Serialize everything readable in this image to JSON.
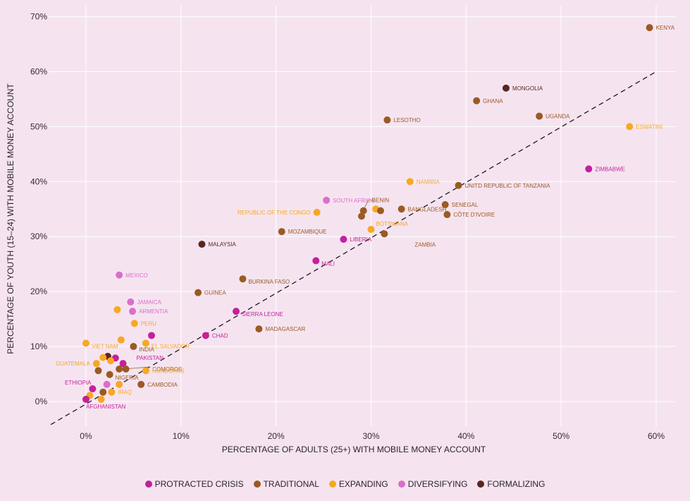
{
  "colors": {
    "background": "#f5e4f0",
    "grid": "#ffffff",
    "protracted_crisis": "#c4209a",
    "traditional": "#9b5a24",
    "expanding": "#f7a823",
    "diversifying": "#db6ecb",
    "formalizing": "#5a2620"
  },
  "chart_data": {
    "type": "scatter",
    "title": "",
    "xlabel": "PERCENTAGE OF ADULTS (25+) WITH MOBILE MONEY ACCOUNT",
    "ylabel": "PERCENTAGE OF YOUTH (15–24) WITH MOBILE MONEY ACCOUNT",
    "xlim": [
      -4,
      62
    ],
    "ylim": [
      -4.5,
      72
    ],
    "x_ticks": [
      0,
      10,
      20,
      30,
      40,
      50,
      60
    ],
    "x_tick_labels": [
      "0%",
      "10%",
      "20%",
      "30%",
      "40%",
      "50%",
      "60%"
    ],
    "y_ticks": [
      0,
      10,
      20,
      30,
      40,
      50,
      60,
      70
    ],
    "y_tick_labels": [
      "0%",
      "10%",
      "20%",
      "30%",
      "40%",
      "50%",
      "60%",
      "70%"
    ],
    "grid": true,
    "reference_line": {
      "style": "dashed",
      "color": "#1a1a1a",
      "points": [
        [
          -3.7,
          -4.2
        ],
        [
          60,
          60
        ]
      ]
    },
    "legend_position": "bottom",
    "series": [
      {
        "key": "protracted_crisis",
        "name": "PROTRACTED CRISIS"
      },
      {
        "key": "traditional",
        "name": "TRADITIONAL"
      },
      {
        "key": "expanding",
        "name": "EXPANDING"
      },
      {
        "key": "diversifying",
        "name": "DIVERSIFYING"
      },
      {
        "key": "formalizing",
        "name": "FORMALIZING"
      }
    ],
    "points": [
      {
        "label": "KENYA",
        "series": "traditional",
        "x": 59.3,
        "y": 68.0,
        "label_pos": "right"
      },
      {
        "label": "MONGOLIA",
        "series": "formalizing",
        "x": 44.2,
        "y": 57.0,
        "label_pos": "right"
      },
      {
        "label": "GHANA",
        "series": "traditional",
        "x": 41.1,
        "y": 54.7,
        "label_pos": "right"
      },
      {
        "label": "UGANDA",
        "series": "traditional",
        "x": 47.7,
        "y": 51.9,
        "label_pos": "right"
      },
      {
        "label": "LESOTHO",
        "series": "traditional",
        "x": 31.7,
        "y": 51.2,
        "label_pos": "right"
      },
      {
        "label": "ESWATINI",
        "series": "expanding",
        "x": 57.2,
        "y": 50.0,
        "label_pos": "right"
      },
      {
        "label": "ZIMBABWE",
        "series": "protracted_crisis",
        "x": 52.9,
        "y": 42.3,
        "label_pos": "right"
      },
      {
        "label": "NAMIBIA",
        "series": "expanding",
        "x": 34.1,
        "y": 40.0,
        "label_pos": "right"
      },
      {
        "label": "UNITD REPUBLIC OF TANZANIA",
        "series": "traditional",
        "x": 39.2,
        "y": 39.3,
        "label_pos": "right"
      },
      {
        "label": "SOUTH AFRICA",
        "series": "diversifying",
        "x": 25.3,
        "y": 36.6,
        "label_pos": "right"
      },
      {
        "label": "BENIN",
        "series": "traditional",
        "x": 29.2,
        "y": 34.7,
        "label_pos": "bracket-right"
      },
      {
        "label": "",
        "series": "traditional",
        "x": 29.0,
        "y": 33.7,
        "label_pos": "none"
      },
      {
        "label": "",
        "series": "expanding",
        "x": 30.5,
        "y": 35.0,
        "label_pos": "none"
      },
      {
        "label": "",
        "series": "traditional",
        "x": 31.0,
        "y": 34.7,
        "label_pos": "none"
      },
      {
        "label": "REPUBLIC OF THE CONGO",
        "series": "expanding",
        "x": 24.3,
        "y": 34.4,
        "label_pos": "left"
      },
      {
        "label": "BANGLADESH",
        "series": "traditional",
        "x": 33.2,
        "y": 35.0,
        "label_pos": "right"
      },
      {
        "label": "SENEGAL",
        "series": "traditional",
        "x": 37.8,
        "y": 35.8,
        "label_pos": "right"
      },
      {
        "label": "CÔTE D'IVOIRE",
        "series": "traditional",
        "x": 38.0,
        "y": 34.0,
        "label_pos": "right"
      },
      {
        "label": "BOTSWANA",
        "series": "expanding",
        "x": 30.0,
        "y": 31.3,
        "label_pos": "right-up"
      },
      {
        "label": "MOZAMBIQUE",
        "series": "traditional",
        "x": 20.6,
        "y": 30.9,
        "label_pos": "right"
      },
      {
        "label": "ZAMBIA",
        "series": "traditional",
        "x": 31.4,
        "y": 30.5,
        "label_pos": "below-right"
      },
      {
        "label": "LIBERIA",
        "series": "protracted_crisis",
        "x": 27.1,
        "y": 29.5,
        "label_pos": "right"
      },
      {
        "label": "MALAYSIA",
        "series": "formalizing",
        "x": 12.2,
        "y": 28.6,
        "label_pos": "right"
      },
      {
        "label": "MALI",
        "series": "protracted_crisis",
        "x": 24.2,
        "y": 25.6,
        "label_pos": "right-down"
      },
      {
        "label": "MEXICO",
        "series": "diversifying",
        "x": 3.5,
        "y": 23.0,
        "label_pos": "right"
      },
      {
        "label": "BURKINA FASO",
        "series": "traditional",
        "x": 16.5,
        "y": 22.3,
        "label_pos": "right-down"
      },
      {
        "label": "GUINEA",
        "series": "traditional",
        "x": 11.8,
        "y": 19.8,
        "label_pos": "right"
      },
      {
        "label": "JAMAICA",
        "series": "diversifying",
        "x": 4.7,
        "y": 18.1,
        "label_pos": "right"
      },
      {
        "label": "ARMENTIA",
        "series": "diversifying",
        "x": 4.9,
        "y": 16.4,
        "label_pos": "right"
      },
      {
        "label": "",
        "series": "expanding",
        "x": 3.3,
        "y": 16.7,
        "label_pos": "none"
      },
      {
        "label": "SIERRA LEONE",
        "series": "protracted_crisis",
        "x": 15.8,
        "y": 16.4,
        "label_pos": "right-down"
      },
      {
        "label": "PERU",
        "series": "expanding",
        "x": 5.1,
        "y": 14.2,
        "label_pos": "right"
      },
      {
        "label": "MADAGASCAR",
        "series": "traditional",
        "x": 18.2,
        "y": 13.2,
        "label_pos": "right"
      },
      {
        "label": "CHAD",
        "series": "protracted_crisis",
        "x": 12.6,
        "y": 12.0,
        "label_pos": "right"
      },
      {
        "label": "",
        "series": "protracted_crisis",
        "x": 6.9,
        "y": 12.0,
        "label_pos": "none"
      },
      {
        "label": "EL SALVADOR",
        "series": "expanding",
        "x": 6.3,
        "y": 10.6,
        "label_pos": "right-down"
      },
      {
        "label": "",
        "series": "expanding",
        "x": 3.7,
        "y": 11.2,
        "label_pos": "none"
      },
      {
        "label": "VIET NAM",
        "series": "expanding",
        "x": 0.0,
        "y": 10.6,
        "label_pos": "right-down"
      },
      {
        "label": "INDIA",
        "series": "traditional",
        "x": 5.0,
        "y": 10.0,
        "label_pos": "right-down"
      },
      {
        "label": "",
        "series": "protracted_crisis",
        "x": 3.1,
        "y": 7.9,
        "label_pos": "none"
      },
      {
        "label": "",
        "series": "formalizing",
        "x": 2.3,
        "y": 8.2,
        "label_pos": "none"
      },
      {
        "label": "",
        "series": "expanding",
        "x": 1.8,
        "y": 8.0,
        "label_pos": "none"
      },
      {
        "label": "",
        "series": "expanding",
        "x": 2.6,
        "y": 7.4,
        "label_pos": "none"
      },
      {
        "label": "GUATEMALA",
        "series": "expanding",
        "x": 1.1,
        "y": 6.9,
        "label_pos": "left"
      },
      {
        "label": "PAKISTAN",
        "series": "protracted_crisis",
        "x": 3.9,
        "y": 6.9,
        "label_pos": "above-right"
      },
      {
        "label": "COMOROS",
        "series": "traditional",
        "x": 3.5,
        "y": 5.9,
        "label_pos": "line-right"
      },
      {
        "label": "",
        "series": "traditional",
        "x": 4.2,
        "y": 5.9,
        "label_pos": "none"
      },
      {
        "label": "",
        "series": "traditional",
        "x": 1.3,
        "y": 5.6,
        "label_pos": "none"
      },
      {
        "label": "HONDURAS",
        "series": "expanding",
        "x": 6.3,
        "y": 5.6,
        "label_pos": "right"
      },
      {
        "label": "NIGERIA",
        "series": "traditional",
        "x": 2.5,
        "y": 4.9,
        "label_pos": "right-down"
      },
      {
        "label": "ETHIOPIA",
        "series": "protracted_crisis",
        "x": 0.7,
        "y": 2.3,
        "label_pos": "left-up"
      },
      {
        "label": "",
        "series": "diversifying",
        "x": 2.2,
        "y": 3.1,
        "label_pos": "none"
      },
      {
        "label": "",
        "series": "expanding",
        "x": 3.5,
        "y": 3.1,
        "label_pos": "none"
      },
      {
        "label": "CAMBODIA",
        "series": "traditional",
        "x": 5.8,
        "y": 3.1,
        "label_pos": "right"
      },
      {
        "label": "",
        "series": "traditional",
        "x": 1.8,
        "y": 1.7,
        "label_pos": "none"
      },
      {
        "label": "IRAQ",
        "series": "expanding",
        "x": 2.7,
        "y": 1.7,
        "label_pos": "right"
      },
      {
        "label": "",
        "series": "expanding",
        "x": 0.4,
        "y": 1.1,
        "label_pos": "none"
      },
      {
        "label": "",
        "series": "expanding",
        "x": 1.6,
        "y": 0.4,
        "label_pos": "none"
      },
      {
        "label": "AFGHANISTAN",
        "series": "protracted_crisis",
        "x": 0.0,
        "y": 0.4,
        "label_pos": "below"
      }
    ]
  }
}
